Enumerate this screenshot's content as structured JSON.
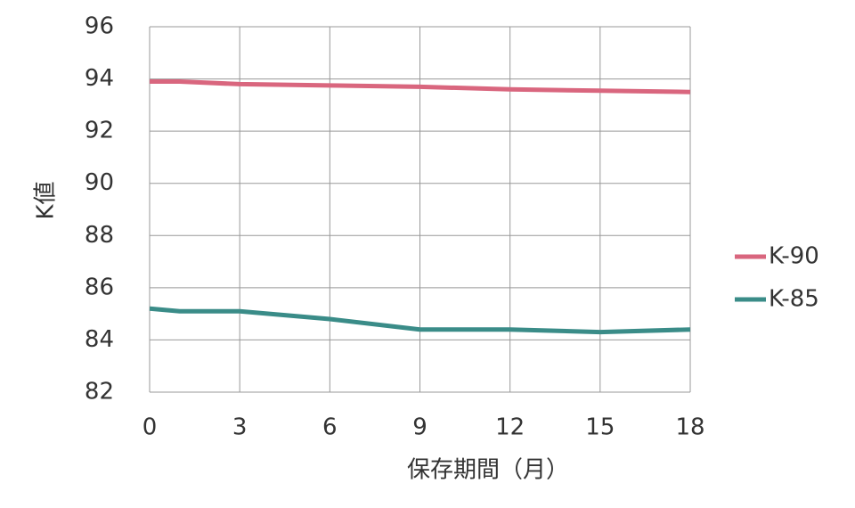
{
  "chart_data": {
    "type": "line",
    "x_label": "保存期間（月）",
    "y_label": "K値",
    "x": [
      0,
      1,
      3,
      6,
      9,
      12,
      15,
      18
    ],
    "series": [
      {
        "name": "K-90",
        "color": "#d9667e",
        "values": [
          93.9,
          93.9,
          93.8,
          93.75,
          93.7,
          93.6,
          93.55,
          93.5
        ]
      },
      {
        "name": "K-85",
        "color": "#3a8c88",
        "values": [
          85.2,
          85.1,
          85.1,
          84.8,
          84.4,
          84.4,
          84.3,
          84.4
        ]
      }
    ],
    "xlim": [
      0,
      18
    ],
    "xticks": [
      0,
      3,
      6,
      9,
      12,
      15,
      18
    ],
    "ylim": [
      82,
      96
    ],
    "yticks": [
      82,
      84,
      86,
      88,
      90,
      92,
      94,
      96
    ],
    "grid": true,
    "legend": "right"
  }
}
